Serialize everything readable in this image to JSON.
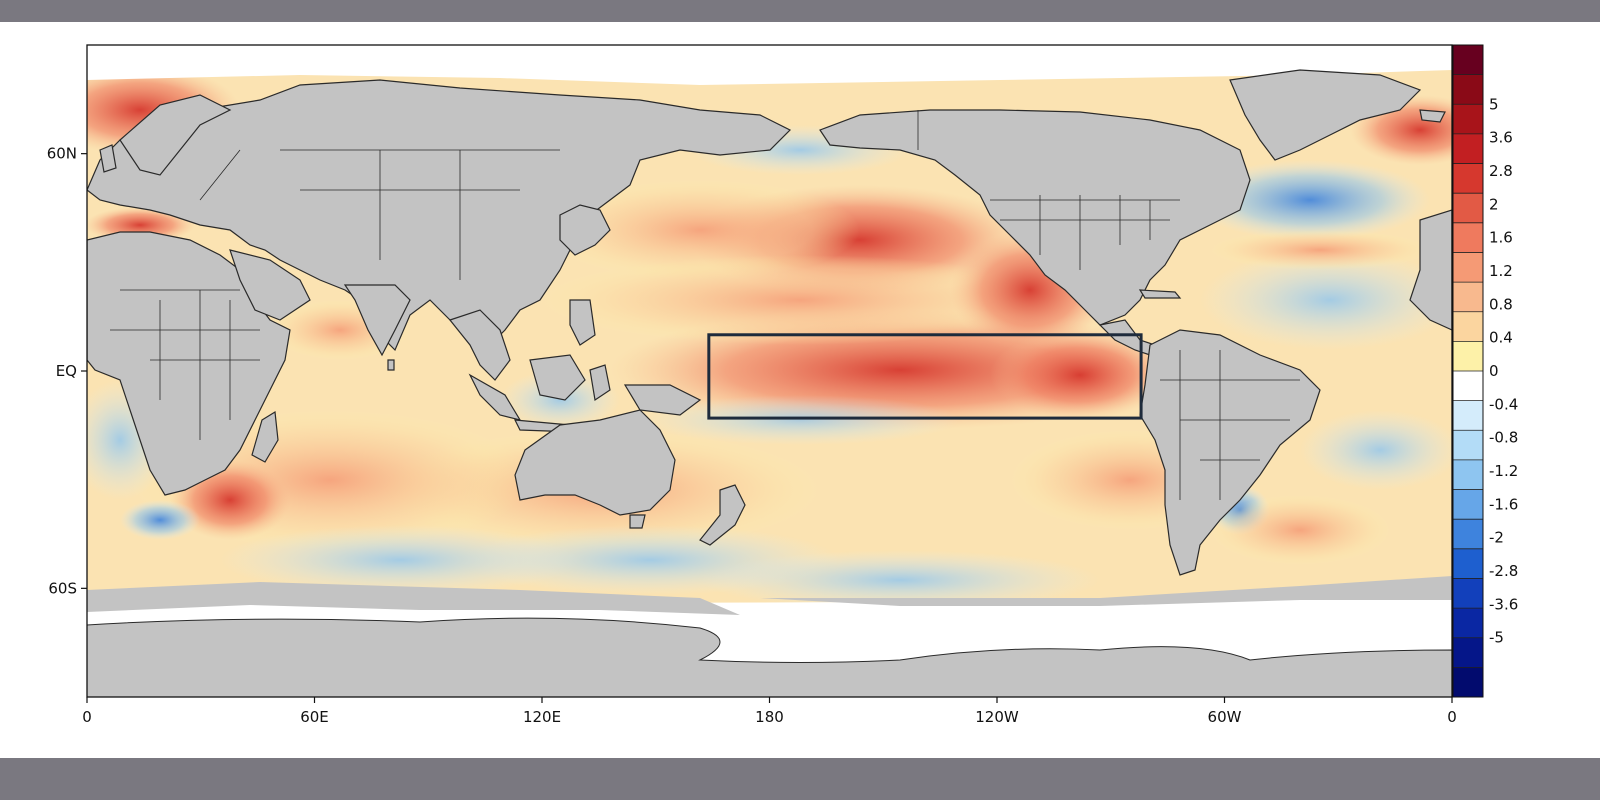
{
  "map": {
    "lat_labels": [
      "60N",
      "EQ",
      "60S"
    ],
    "lat_values": [
      60,
      0,
      -60
    ],
    "lon_labels": [
      "0",
      "60E",
      "120E",
      "180",
      "120W",
      "60W",
      "0"
    ],
    "lon_values": [
      0,
      60,
      120,
      180,
      240,
      300,
      360
    ],
    "extent": {
      "lon": [
        0,
        360
      ],
      "lat": [
        -90,
        90
      ]
    },
    "highlight_box": {
      "lon": [
        164,
        278
      ],
      "lat": [
        -13,
        10
      ]
    },
    "land_color": "#c3c3c3",
    "border_color": "#2a2a2a",
    "ice_color": "#ffffff"
  },
  "colorbar": {
    "labels": [
      "5",
      "3.6",
      "2.8",
      "2",
      "1.6",
      "1.2",
      "0.8",
      "0.4",
      "0",
      "-0.4",
      "-0.8",
      "-1.2",
      "-1.6",
      "-2",
      "-2.8",
      "-3.6",
      "-5"
    ],
    "colors": [
      "#67001f",
      "#8a0a17",
      "#a8141a",
      "#c21f22",
      "#d6382e",
      "#e25a45",
      "#ef7a5e",
      "#f59a75",
      "#f8b98e",
      "#fbd59f",
      "#fdf1a8",
      "#ffffff",
      "#d4ecfb",
      "#b3dcf7",
      "#8ec5f0",
      "#66a6e8",
      "#3e83dd",
      "#1e5fcf",
      "#1240bb",
      "#0a27a3",
      "#051689",
      "#020b6e"
    ]
  }
}
